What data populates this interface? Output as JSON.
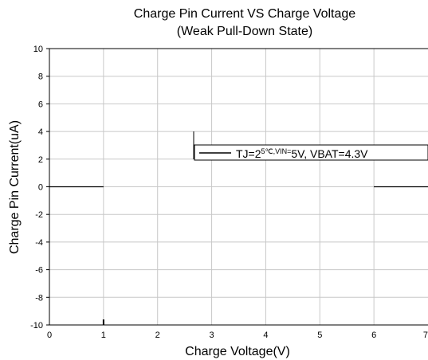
{
  "chart_data": {
    "type": "line",
    "title": "Charge Pin Current VS Charge Voltage",
    "subtitle": "(Weak Pull-Down State)",
    "xlabel": "Charge Voltage(V)",
    "ylabel": "Charge Pin Current(uA)",
    "xlim": [
      0,
      7
    ],
    "ylim": [
      -10,
      10
    ],
    "x_ticks": [
      0,
      1,
      2,
      3,
      4,
      5,
      6,
      7
    ],
    "y_ticks": [
      -10,
      -8,
      -6,
      -4,
      -2,
      0,
      2,
      4,
      6,
      8,
      10
    ],
    "x_tick_labels": [
      "0",
      "1",
      "2",
      "3",
      "4",
      "5",
      "6",
      "7"
    ],
    "y_tick_labels": [
      "-10",
      "-8",
      "-6",
      "-4",
      "-2",
      "0",
      "2",
      "4",
      "6",
      "8",
      "10"
    ],
    "grid": true,
    "legend_placement": "center-right",
    "series": [
      {
        "name_parts": [
          "TJ=2",
          "5℃,VIN=",
          "5V, VBAT=4.3V"
        ],
        "color": "#000000",
        "segments": [
          {
            "x": [
              0,
              1
            ],
            "y": [
              0,
              0
            ]
          },
          {
            "x": [
              1,
              1
            ],
            "y": [
              -9.6,
              -10
            ]
          },
          {
            "x": [
              6,
              7
            ],
            "y": [
              0,
              0
            ]
          }
        ]
      }
    ]
  }
}
